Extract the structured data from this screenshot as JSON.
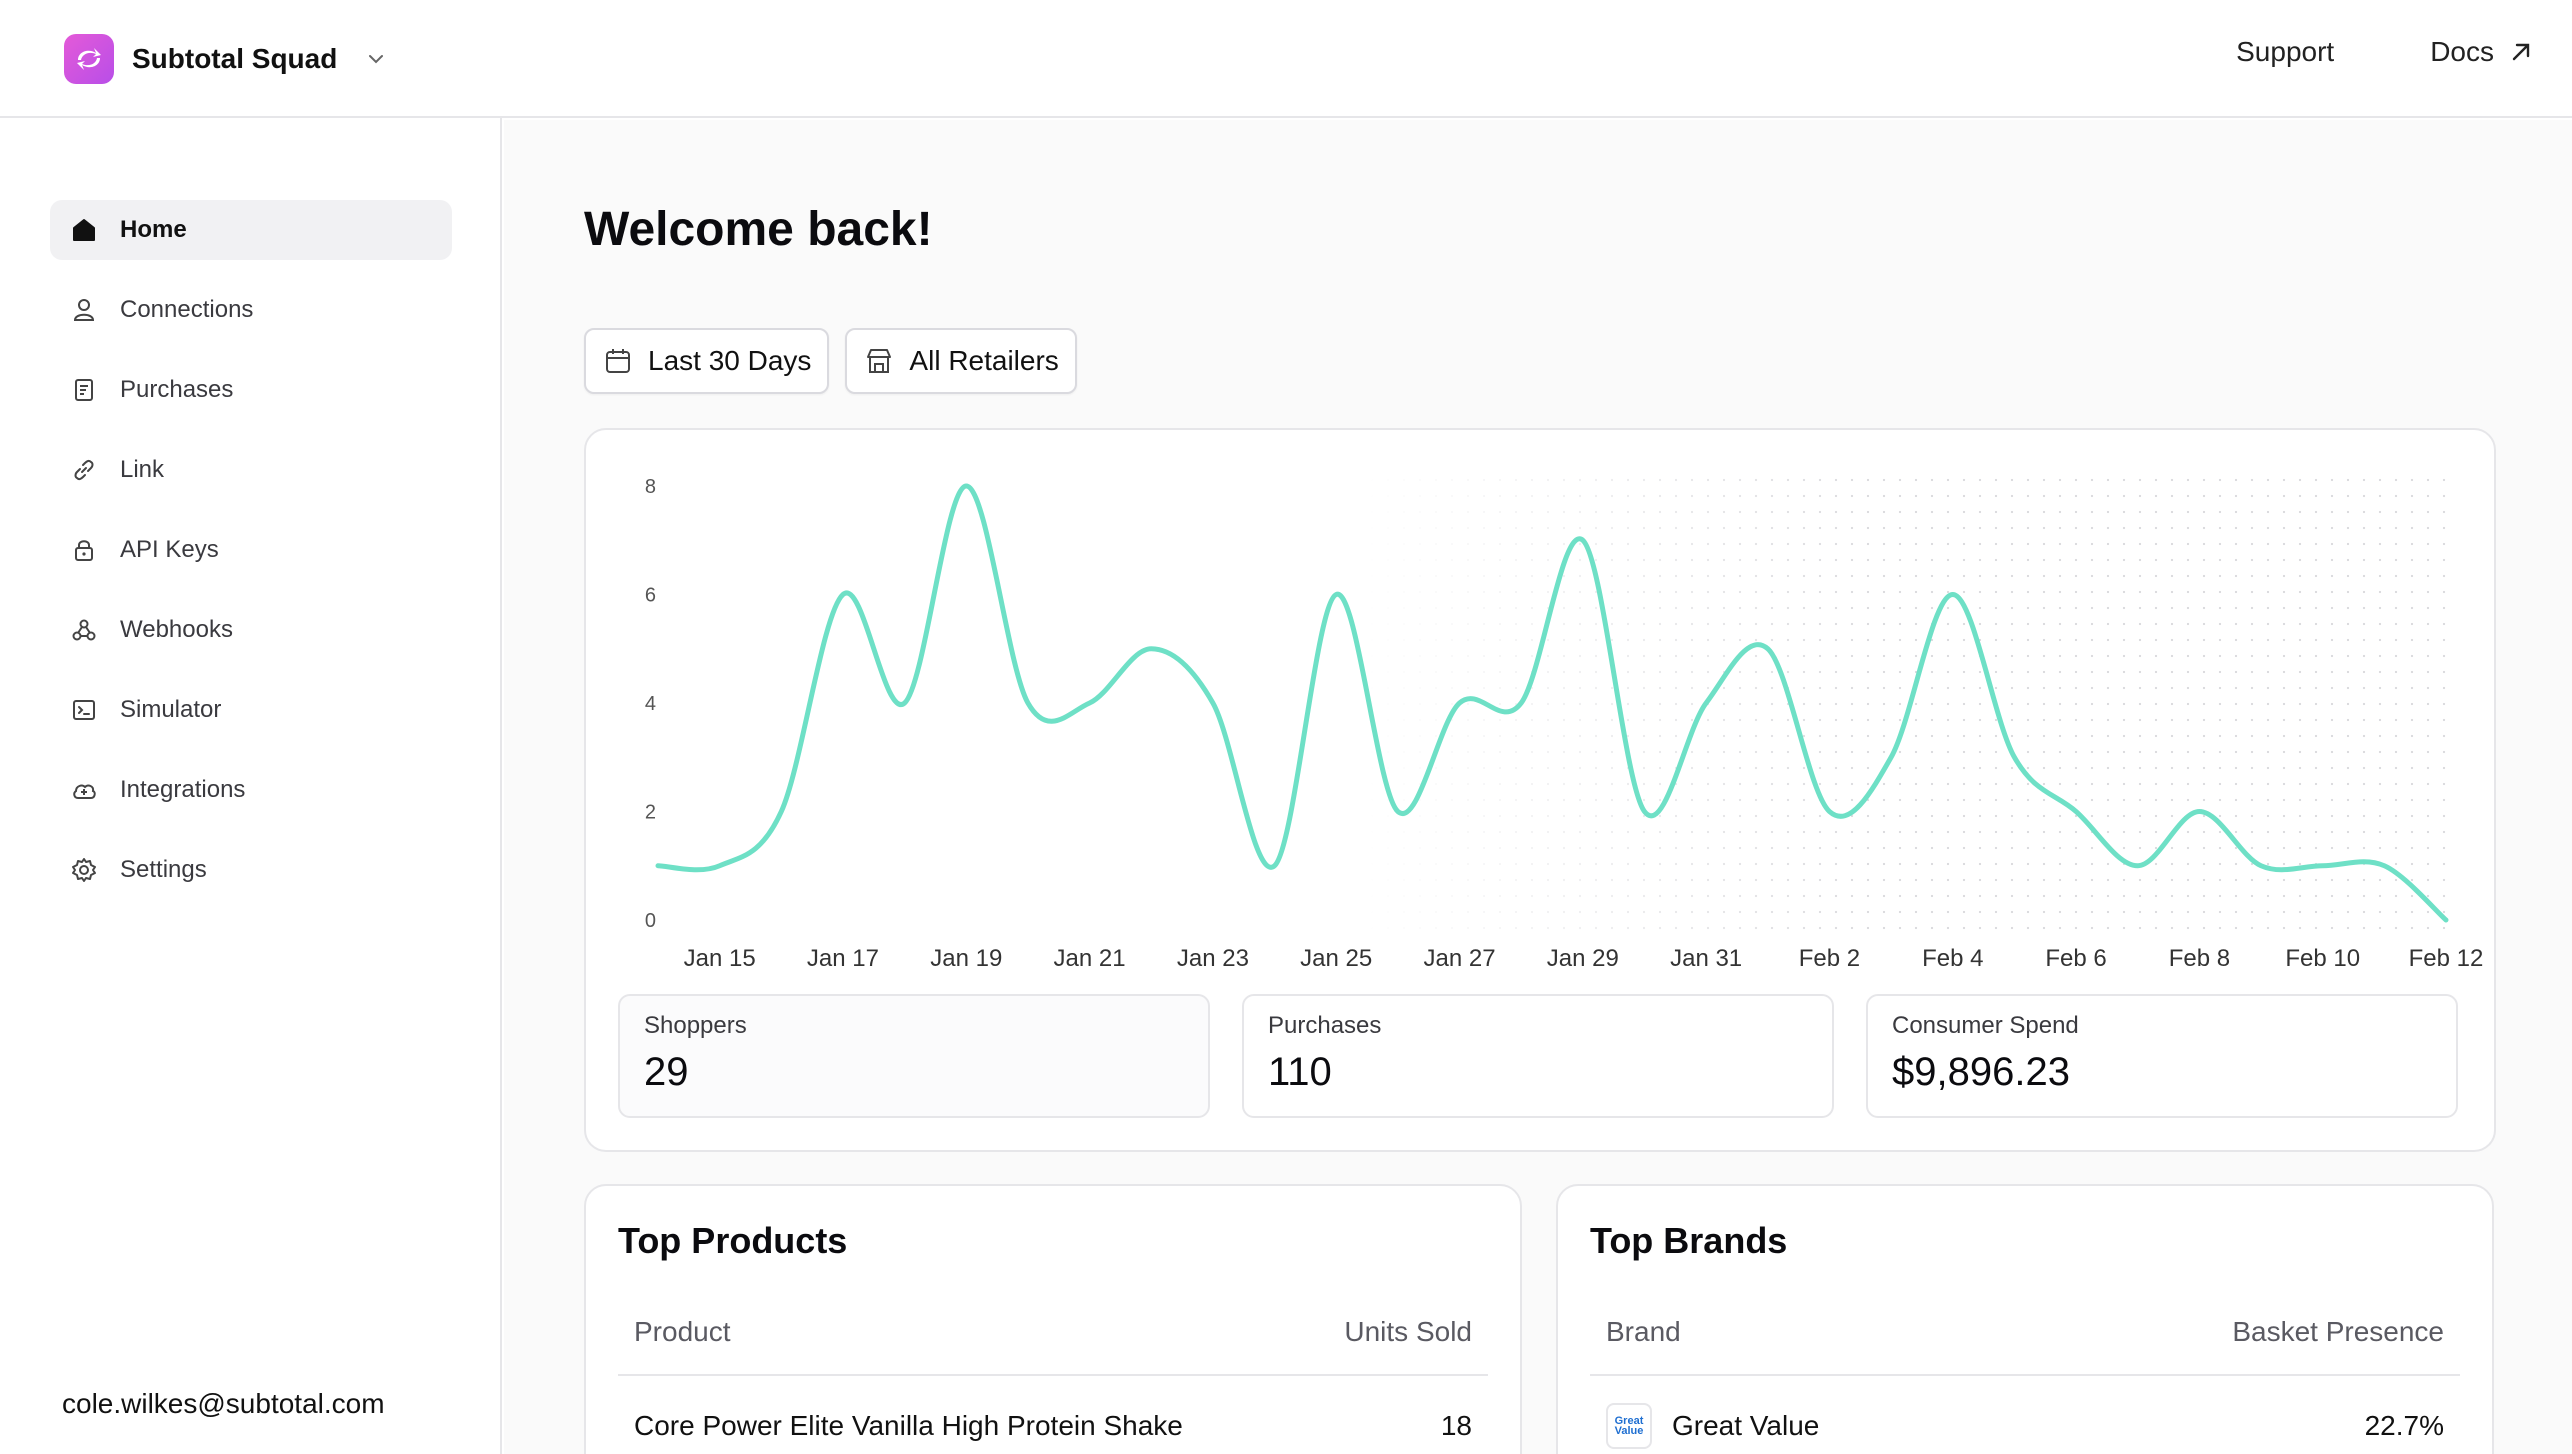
{
  "header": {
    "org_name": "Subtotal Squad",
    "links": [
      {
        "label": "Support"
      },
      {
        "label": "Docs"
      }
    ]
  },
  "sidebar": {
    "items": [
      {
        "label": "Home",
        "icon": "home-icon",
        "active": true
      },
      {
        "label": "Connections",
        "icon": "user-icon"
      },
      {
        "label": "Purchases",
        "icon": "receipt-icon"
      },
      {
        "label": "Link",
        "icon": "link-icon"
      },
      {
        "label": "API Keys",
        "icon": "lock-icon"
      },
      {
        "label": "Webhooks",
        "icon": "webhook-icon"
      },
      {
        "label": "Simulator",
        "icon": "terminal-icon"
      },
      {
        "label": "Integrations",
        "icon": "cloud-icon"
      },
      {
        "label": "Settings",
        "icon": "gear-icon"
      }
    ],
    "user_email": "cole.wilkes@subtotal.com"
  },
  "main": {
    "title": "Welcome back!",
    "filters": {
      "date_range": "Last 30 Days",
      "retailer": "All Retailers"
    },
    "stats": [
      {
        "label": "Shoppers",
        "value": "29"
      },
      {
        "label": "Purchases",
        "value": "110"
      },
      {
        "label": "Consumer Spend",
        "value": "$9,896.23"
      }
    ],
    "top_products": {
      "title": "Top Products",
      "columns": [
        "Product",
        "Units Sold"
      ],
      "rows": [
        {
          "name": "Core Power Elite Vanilla High Protein Shake",
          "value": "18"
        }
      ]
    },
    "top_brands": {
      "title": "Top Brands",
      "columns": [
        "Brand",
        "Basket Presence"
      ],
      "rows": [
        {
          "name": "Great Value",
          "value": "22.7%",
          "logo_text": "Great Value"
        }
      ]
    }
  },
  "colors": {
    "accent_line": "#6ee0c6",
    "logo_gradient_start": "#e45ad8",
    "logo_gradient_end": "#b84ee8"
  },
  "chart_data": {
    "type": "line",
    "x": [
      "Jan 14",
      "Jan 15",
      "Jan 16",
      "Jan 17",
      "Jan 18",
      "Jan 19",
      "Jan 20",
      "Jan 21",
      "Jan 22",
      "Jan 23",
      "Jan 24",
      "Jan 25",
      "Jan 26",
      "Jan 27",
      "Jan 28",
      "Jan 29",
      "Jan 30",
      "Jan 31",
      "Feb 1",
      "Feb 2",
      "Feb 3",
      "Feb 4",
      "Feb 5",
      "Feb 6",
      "Feb 7",
      "Feb 8",
      "Feb 9",
      "Feb 10",
      "Feb 11",
      "Feb 12"
    ],
    "values": [
      1,
      1,
      2,
      6,
      4,
      8,
      4,
      4,
      5,
      4,
      1,
      6,
      2,
      4,
      4,
      7,
      2,
      4,
      5,
      2,
      3,
      6,
      3,
      2,
      1,
      2,
      1,
      1,
      1,
      0
    ],
    "x_tick_labels": [
      "Jan 15",
      "Jan 17",
      "Jan 19",
      "Jan 21",
      "Jan 23",
      "Jan 25",
      "Jan 27",
      "Jan 29",
      "Jan 31",
      "Feb 2",
      "Feb 4",
      "Feb 6",
      "Feb 8",
      "Feb 10",
      "Feb 12"
    ],
    "y_ticks": [
      0,
      2,
      4,
      6,
      8
    ],
    "ylim": [
      0,
      8
    ],
    "grid": false,
    "series_color": "#6ee0c6"
  }
}
